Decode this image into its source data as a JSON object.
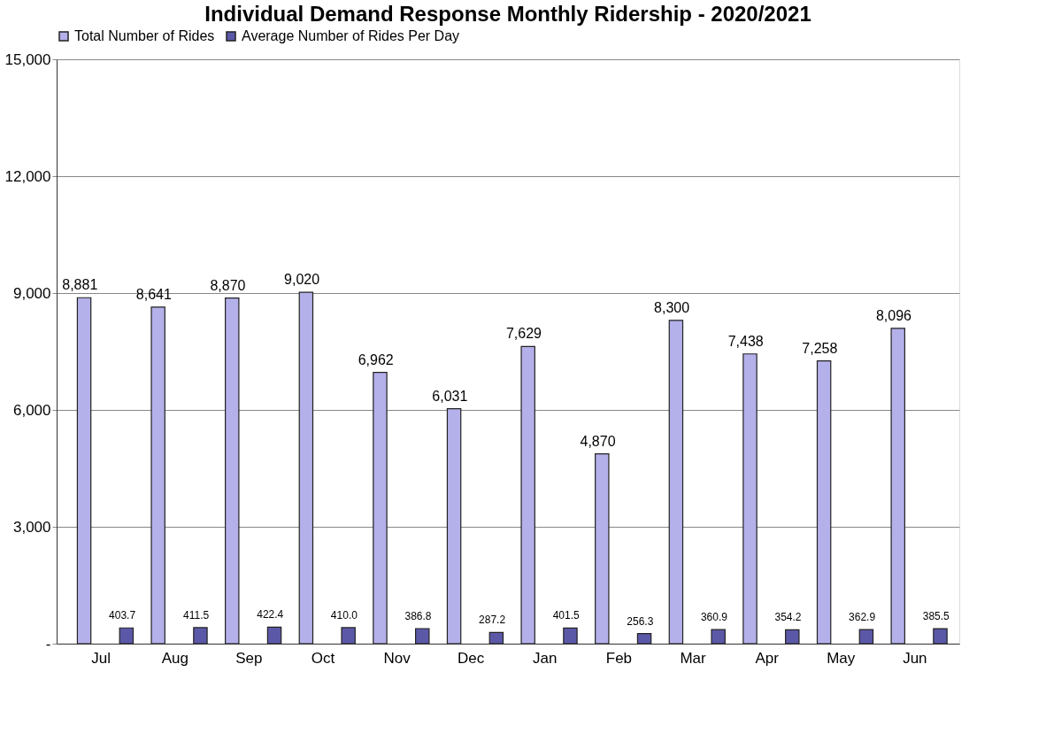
{
  "chart_data": {
    "type": "bar",
    "title": "Individual Demand Response Monthly Ridership - 2020/2021",
    "categories": [
      "Jul",
      "Aug",
      "Sep",
      "Oct",
      "Nov",
      "Dec",
      "Jan",
      "Feb",
      "Mar",
      "Apr",
      "May",
      "Jun"
    ],
    "series": [
      {
        "name": "Total Number of Rides",
        "color": "#b4b0ea",
        "values": [
          8881,
          8641,
          8870,
          9020,
          6962,
          6031,
          7629,
          4870,
          8300,
          7438,
          7258,
          8096
        ],
        "value_labels": [
          "8,881",
          "8,641",
          "8,870",
          "9,020",
          "6,962",
          "6,031",
          "7,629",
          "4,870",
          "8,300",
          "7,438",
          "7,258",
          "8,096"
        ]
      },
      {
        "name": "Average Number of Rides Per Day",
        "color": "#5c58a8",
        "values": [
          403.7,
          411.5,
          422.4,
          410.0,
          386.8,
          287.2,
          401.5,
          256.3,
          360.9,
          354.2,
          362.9,
          385.5
        ],
        "value_labels": [
          "403.7",
          "411.5",
          "422.4",
          "410.0",
          "386.8",
          "287.2",
          "401.5",
          "256.3",
          "360.9",
          "354.2",
          "362.9",
          "385.5"
        ]
      }
    ],
    "ylim": [
      0,
      15000
    ],
    "yticks": [
      {
        "value": 0,
        "label": "-"
      },
      {
        "value": 3000,
        "label": "3,000"
      },
      {
        "value": 6000,
        "label": "6,000"
      },
      {
        "value": 9000,
        "label": "9,000"
      },
      {
        "value": 12000,
        "label": "12,000"
      },
      {
        "value": 15000,
        "label": "15,000"
      }
    ],
    "grid": "y",
    "legend": "top"
  }
}
